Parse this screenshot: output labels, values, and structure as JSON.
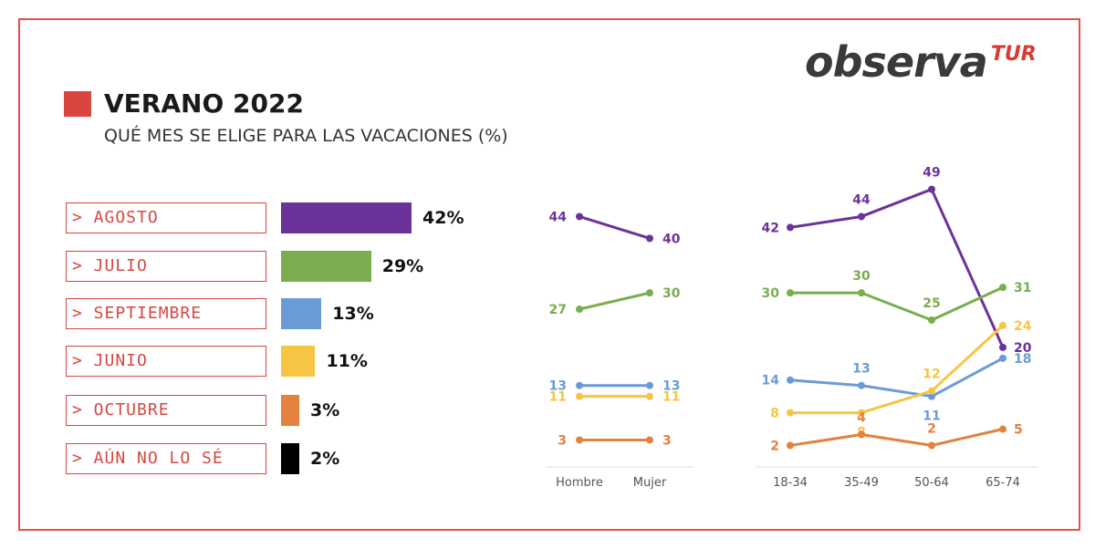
{
  "logo": {
    "main": "observa",
    "sub": "TUR"
  },
  "title": "VERANO 2022",
  "subtitle": "QUÉ MES SE ELIGE PARA LAS VACACIONES (%)",
  "chart_data": [
    {
      "type": "bar",
      "orientation": "horizontal",
      "categories": [
        "> AGOSTO",
        "> JULIO",
        "> SEPTIEMBRE",
        "> JUNIO",
        "> OCTUBRE",
        "> AÚN NO LO SÉ"
      ],
      "values": [
        42,
        29,
        13,
        11,
        3,
        2
      ],
      "value_labels": [
        "42%",
        "29%",
        "13%",
        "11%",
        "3%",
        "2%"
      ],
      "colors": [
        "#6b3399",
        "#7aad4e",
        "#6b9bd6",
        "#f6c544",
        "#e2823e",
        "#000000"
      ]
    },
    {
      "type": "line",
      "x": [
        "Hombre",
        "Mujer"
      ],
      "series": [
        {
          "values": [
            44,
            40
          ],
          "color": "#6b3399"
        },
        {
          "values": [
            27,
            30
          ],
          "color": "#7aad4e"
        },
        {
          "values": [
            13,
            13
          ],
          "color": "#6b9bd6"
        },
        {
          "values": [
            11,
            11
          ],
          "color": "#f6c544"
        },
        {
          "values": [
            3,
            3
          ],
          "color": "#e2823e"
        }
      ]
    },
    {
      "type": "line",
      "x": [
        "18-34",
        "35-49",
        "50-64",
        "65-74"
      ],
      "series": [
        {
          "values": [
            42,
            44,
            49,
            20
          ],
          "color": "#6b3399"
        },
        {
          "values": [
            30,
            30,
            25,
            31
          ],
          "color": "#7aad4e"
        },
        {
          "values": [
            14,
            13,
            11,
            18
          ],
          "color": "#6b9bd6"
        },
        {
          "values": [
            8,
            8,
            12,
            24
          ],
          "color": "#f6c544"
        },
        {
          "values": [
            2,
            4,
            2,
            5
          ],
          "color": "#e2823e"
        }
      ]
    }
  ]
}
